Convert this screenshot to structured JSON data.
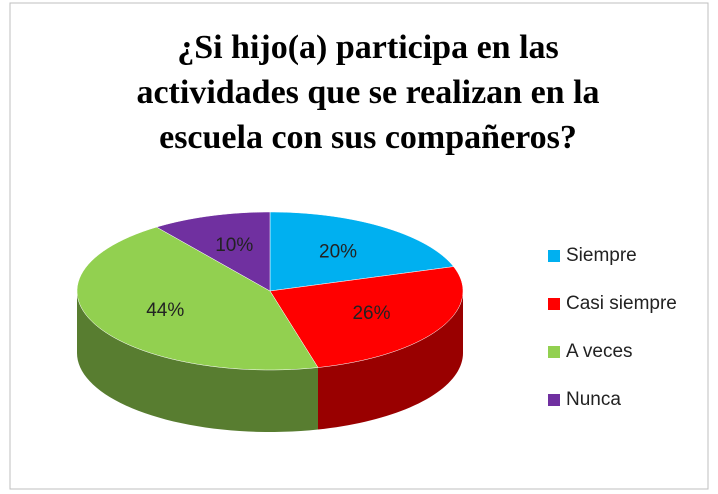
{
  "chart_data": {
    "type": "pie3d",
    "title": [
      "¿Si hijo(a) participa en las",
      "actividades que se realizan en la",
      "escuela con sus compañeros?"
    ],
    "categories": [
      "Siempre",
      "Casi siempre",
      "A veces",
      "Nunca"
    ],
    "values": [
      20,
      26,
      44,
      10
    ],
    "value_labels": [
      "20%",
      "26%",
      "44%",
      "10%"
    ],
    "colors": [
      "#00b0f0",
      "#ff0000",
      "#92d050",
      "#7030a0"
    ],
    "legend": "right"
  }
}
